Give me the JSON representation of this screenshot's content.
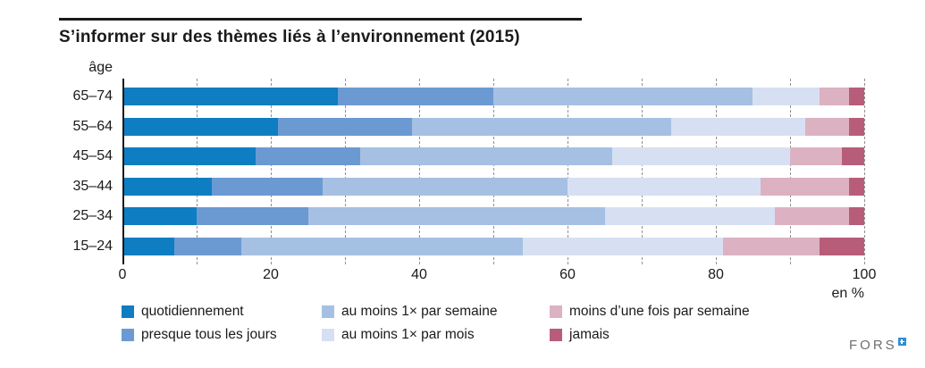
{
  "chart_data": {
    "type": "bar",
    "orientation": "horizontal",
    "stacked": true,
    "title": "S’informer sur des thèmes liés à l’environnement (2015)",
    "y_axis_header": "âge",
    "categories": [
      "65–74",
      "55–64",
      "45–54",
      "35–44",
      "25–34",
      "15–24"
    ],
    "x_ticks": [
      0,
      20,
      40,
      60,
      80,
      100
    ],
    "xlim": [
      0,
      100
    ],
    "gridline_step": 10,
    "unit_label": "en %",
    "grid": true,
    "legend_position": "bottom",
    "series": [
      {
        "name": "quotidiennement",
        "color": "#0e7dc2",
        "values": [
          29,
          21,
          18,
          12,
          10,
          7
        ]
      },
      {
        "name": "presque tous les jours",
        "color": "#6b9ad2",
        "values": [
          21,
          18,
          14,
          15,
          15,
          9
        ]
      },
      {
        "name": "au moins 1× par semaine",
        "color": "#a5c0e3",
        "values": [
          35,
          35,
          34,
          33,
          40,
          38
        ]
      },
      {
        "name": "au moins 1× par mois",
        "color": "#d7e0f2",
        "values": [
          9,
          18,
          24,
          26,
          23,
          27
        ]
      },
      {
        "name": "moins d’une fois par semaine",
        "color": "#dcb2c2",
        "values": [
          4,
          6,
          7,
          12,
          10,
          13
        ]
      },
      {
        "name": "jamais",
        "color": "#b85d79",
        "values": [
          2,
          2,
          3,
          2,
          2,
          6
        ]
      }
    ],
    "legend_layout": [
      [
        0,
        2,
        4
      ],
      [
        1,
        3,
        5
      ]
    ]
  },
  "footer": {
    "logo_text": "FORS"
  }
}
